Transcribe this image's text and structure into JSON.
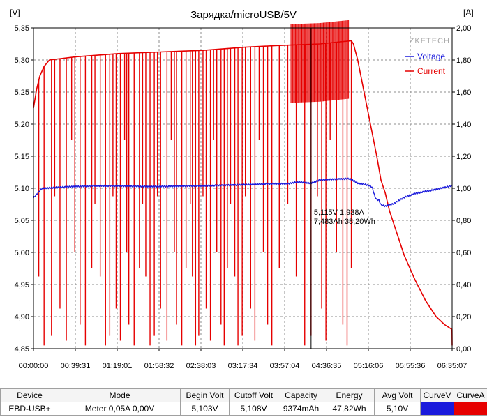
{
  "chart_data": {
    "type": "line",
    "title": "Зарядка/microUSB/5V",
    "y_left_unit": "[V]",
    "y_right_unit": "[A]",
    "watermark": "ZKETECH",
    "y_left_range": [
      4.85,
      5.35
    ],
    "y_left_ticks": [
      "5,35",
      "5,30",
      "5,25",
      "5,20",
      "5,15",
      "5,10",
      "5,05",
      "5,00",
      "4,95",
      "4,90",
      "4,85"
    ],
    "y_right_range": [
      0,
      2.0
    ],
    "y_right_ticks": [
      "2,00",
      "1,80",
      "1,60",
      "1,40",
      "1,20",
      "1,00",
      "0,80",
      "0,60",
      "0,40",
      "0,20",
      "0,00"
    ],
    "x_range_minutes": [
      0,
      395.12
    ],
    "x_ticks": [
      "00:00:00",
      "00:39:31",
      "01:19:01",
      "01:58:32",
      "02:38:03",
      "03:17:34",
      "03:57:04",
      "04:36:35",
      "05:16:06",
      "05:55:36",
      "06:35:07"
    ],
    "grid": true,
    "legend_position": "top-right",
    "series": [
      {
        "name": "Voltage",
        "color": "#1a1adc",
        "axis": "left",
        "points": [
          [
            0,
            5.085
          ],
          [
            8,
            5.1
          ],
          [
            30,
            5.102
          ],
          [
            60,
            5.104
          ],
          [
            100,
            5.103
          ],
          [
            130,
            5.103
          ],
          [
            160,
            5.104
          ],
          [
            190,
            5.105
          ],
          [
            220,
            5.107
          ],
          [
            240,
            5.107
          ],
          [
            250,
            5.11
          ],
          [
            262,
            5.108
          ],
          [
            270,
            5.113
          ],
          [
            298,
            5.115
          ],
          [
            300,
            5.114
          ],
          [
            306,
            5.108
          ],
          [
            310,
            5.107
          ],
          [
            318,
            5.104
          ],
          [
            320,
            5.1
          ],
          [
            322,
            5.088
          ],
          [
            324,
            5.082
          ],
          [
            326,
            5.082
          ],
          [
            328,
            5.074
          ],
          [
            332,
            5.072
          ],
          [
            340,
            5.076
          ],
          [
            350,
            5.086
          ],
          [
            360,
            5.092
          ],
          [
            380,
            5.098
          ],
          [
            395,
            5.104
          ]
        ]
      },
      {
        "name": "Current",
        "color": "#e60000",
        "axis": "right",
        "points": [
          [
            0,
            1.5
          ],
          [
            3,
            1.62
          ],
          [
            6,
            1.7
          ],
          [
            10,
            1.76
          ],
          [
            15,
            1.8
          ],
          [
            40,
            1.82
          ],
          [
            80,
            1.84
          ],
          [
            120,
            1.85
          ],
          [
            160,
            1.86
          ],
          [
            200,
            1.88
          ],
          [
            230,
            1.89
          ],
          [
            270,
            1.9
          ],
          [
            300,
            1.92
          ],
          [
            302,
            1.9
          ],
          [
            306,
            1.8
          ],
          [
            312,
            1.6
          ],
          [
            318,
            1.4
          ],
          [
            324,
            1.2
          ],
          [
            328,
            1.05
          ],
          [
            332,
            0.97
          ],
          [
            336,
            0.86
          ],
          [
            342,
            0.74
          ],
          [
            350,
            0.58
          ],
          [
            360,
            0.43
          ],
          [
            370,
            0.3
          ],
          [
            380,
            0.2
          ],
          [
            388,
            0.15
          ],
          [
            395,
            0.12
          ],
          [
            395.12,
            0.02
          ]
        ],
        "spikes_minutes": [
          5,
          10,
          17,
          20,
          25,
          31,
          36,
          39,
          44,
          49,
          55,
          58,
          63,
          68,
          72,
          75,
          78,
          82,
          86,
          88,
          90,
          95,
          100,
          103,
          106,
          110,
          114,
          117,
          120,
          126,
          130,
          133,
          135,
          140,
          144,
          148,
          150,
          153,
          156,
          160,
          163,
          167,
          170,
          173,
          177,
          180,
          183,
          186,
          190,
          193,
          197,
          200,
          205,
          209,
          213,
          217,
          221,
          225,
          232,
          240,
          248,
          256,
          262,
          268,
          272,
          276,
          280,
          286,
          292,
          296,
          300
        ]
      }
    ],
    "cursor": {
      "time_minutes": 262,
      "label_line1": "5,115V  1,938A",
      "label_line2": "7,483Ah 38,20Wh"
    }
  },
  "table": {
    "headers": [
      "Device",
      "Mode",
      "Begin Volt",
      "Cutoff Volt",
      "Capacity",
      "Energy",
      "Avg Volt",
      "CurveV",
      "CurveA"
    ],
    "row": [
      "EBD-USB+",
      "Meter  0,05A  0,00V",
      "5,103V",
      "5,108V",
      "9374mAh",
      "47,82Wh",
      "5,10V"
    ]
  }
}
